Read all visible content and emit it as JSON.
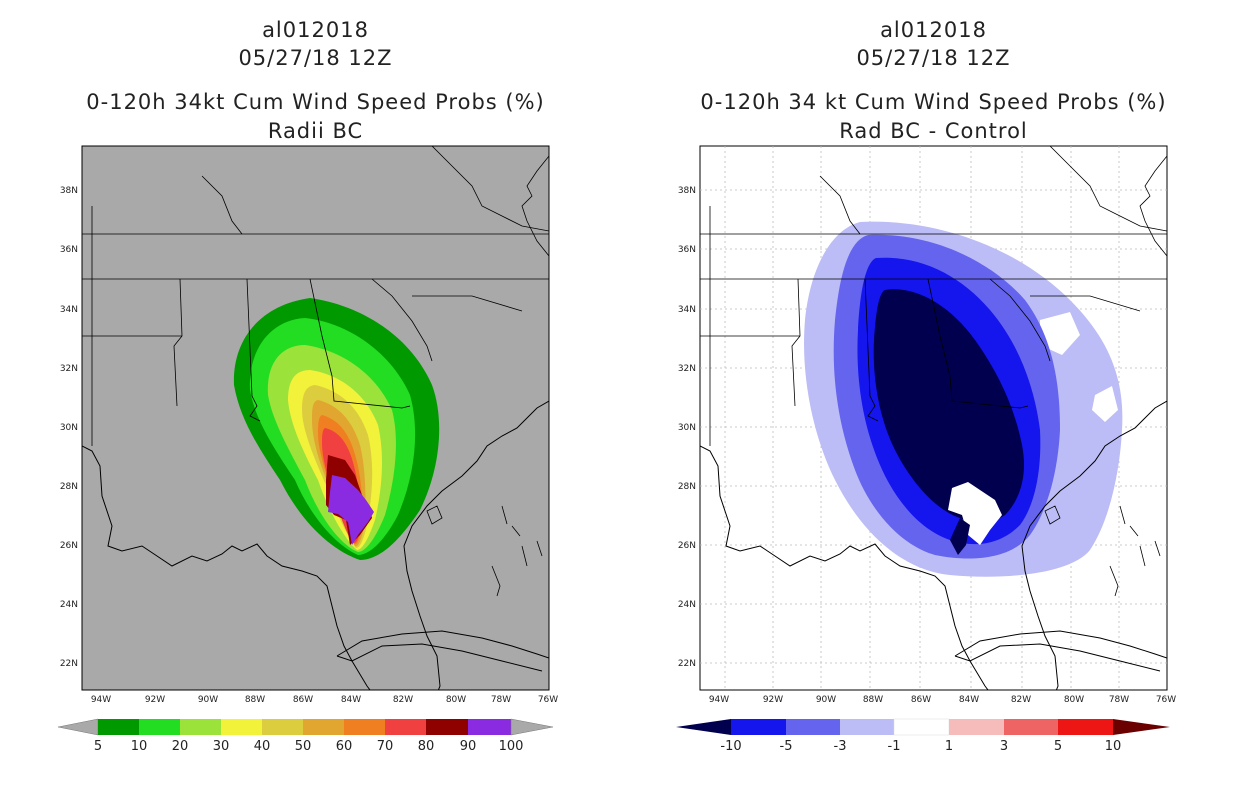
{
  "left_panel": {
    "storm_id": "al012018",
    "date": "05/27/18 12Z",
    "title": "0-120h 34kt Cum Wind Speed Probs (%)",
    "subtitle": "Radii BC",
    "background": "#a9a9a9",
    "lat_labels": [
      "38N",
      "36N",
      "34N",
      "32N",
      "30N",
      "28N",
      "26N",
      "24N",
      "22N"
    ],
    "lon_labels": [
      "94W",
      "92W",
      "90W",
      "88W",
      "86W",
      "84W",
      "82W",
      "80W",
      "78W",
      "76W"
    ],
    "colorbar": {
      "labels": [
        "5",
        "10",
        "20",
        "30",
        "40",
        "50",
        "60",
        "70",
        "80",
        "90",
        "100"
      ],
      "colors": [
        "#009a00",
        "#22dd22",
        "#9be23b",
        "#f2f23a",
        "#dccd3e",
        "#e0a62f",
        "#f07f22",
        "#f04040",
        "#8f0000",
        "#8a2be2"
      ]
    }
  },
  "right_panel": {
    "storm_id": "al012018",
    "date": "05/27/18 12Z",
    "title": "0-120h 34 kt Cum Wind Speed Probs (%)",
    "subtitle": "Rad BC - Control",
    "background": "#ffffff",
    "lat_labels": [
      "38N",
      "36N",
      "34N",
      "32N",
      "30N",
      "28N",
      "26N",
      "24N",
      "22N"
    ],
    "lon_labels": [
      "94W",
      "92W",
      "90W",
      "88W",
      "86W",
      "84W",
      "82W",
      "80W",
      "78W",
      "76W"
    ],
    "colorbar": {
      "labels": [
        "-10",
        "-5",
        "-3",
        "-1",
        "1",
        "3",
        "5",
        "10"
      ],
      "colors": [
        "#00004f",
        "#1515ee",
        "#6464ee",
        "#bcbcf6",
        "#ffffff",
        "#f6bcbc",
        "#ee6464",
        "#ee1515",
        "#6a0000"
      ]
    }
  }
}
